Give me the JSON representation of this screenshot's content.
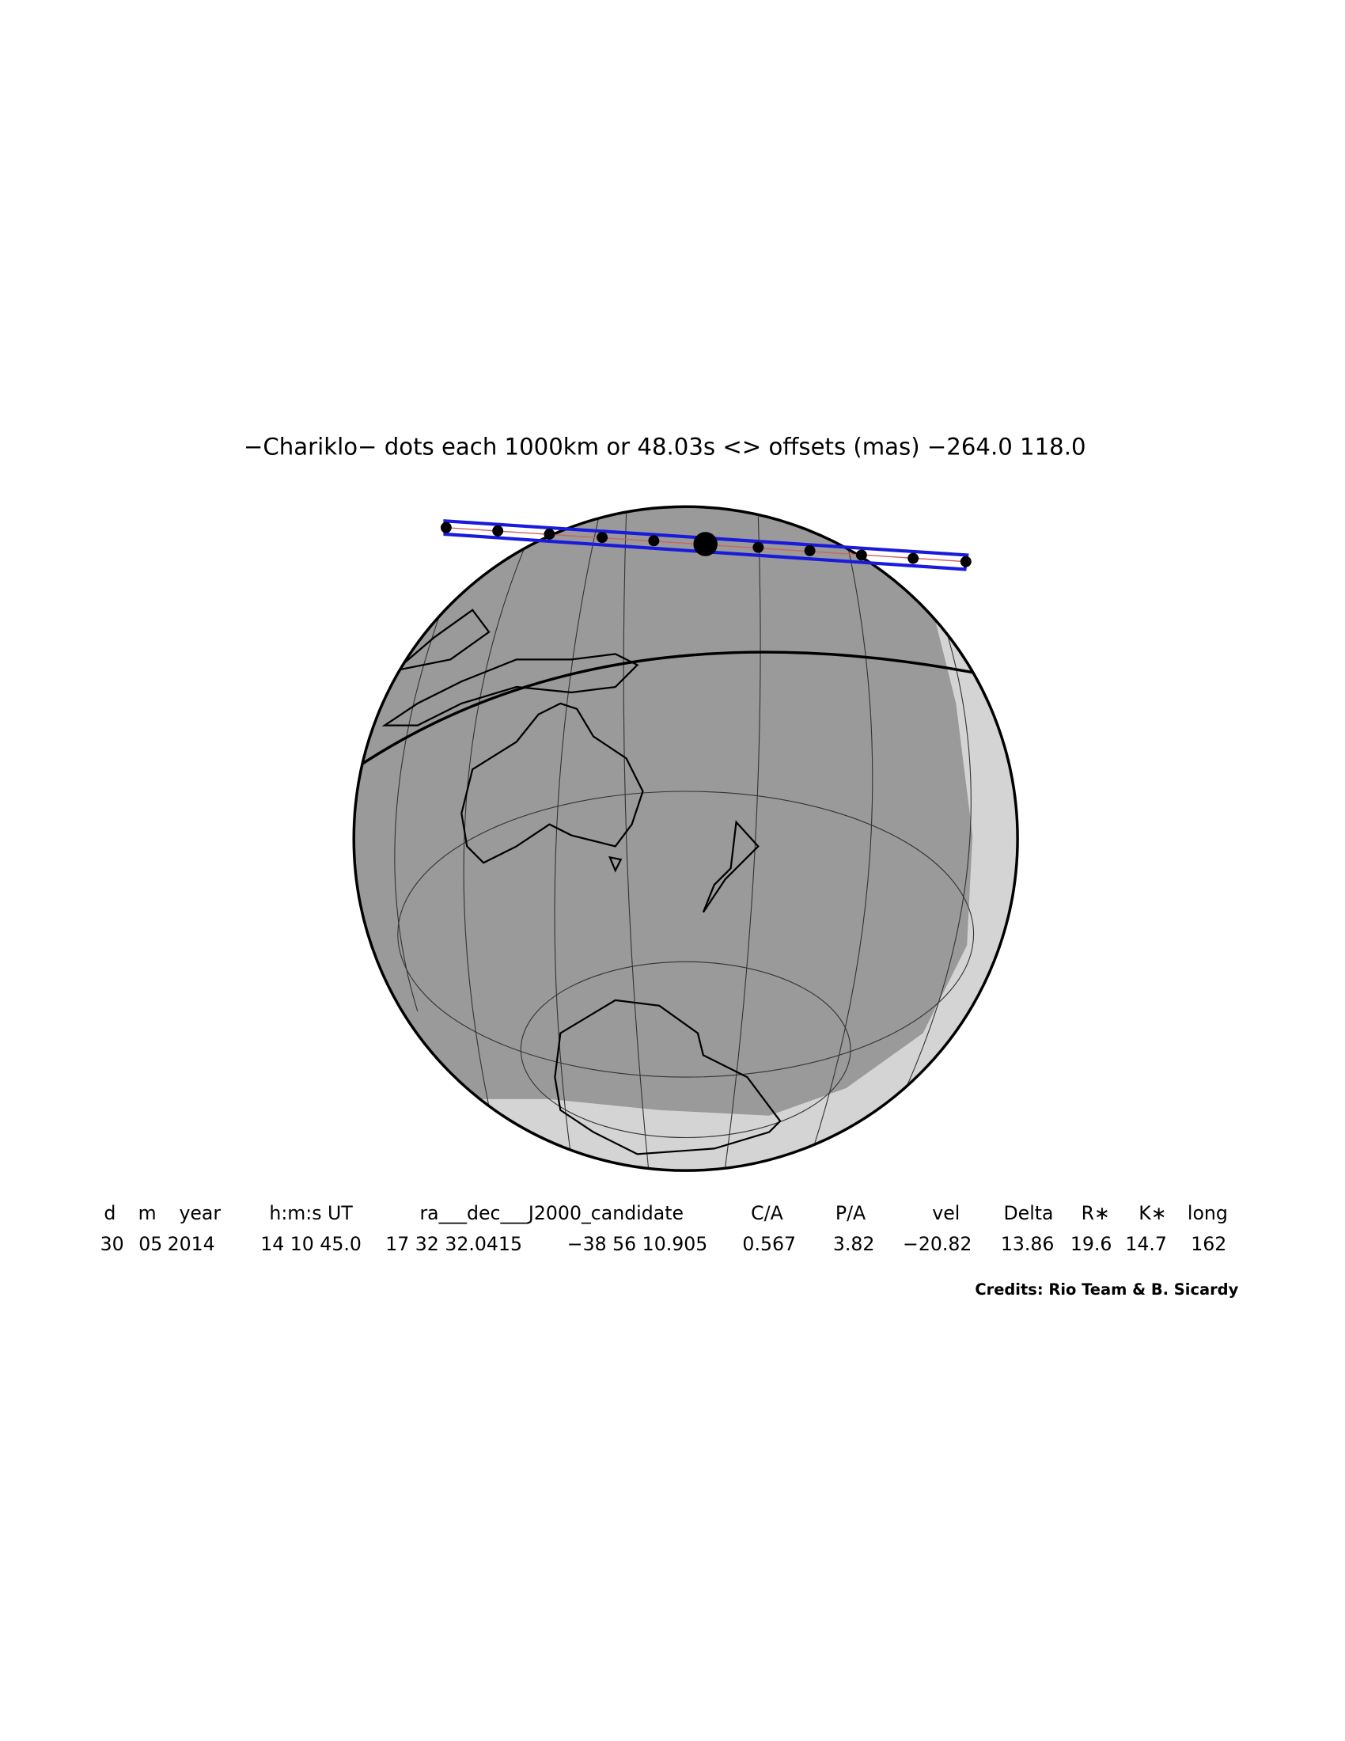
{
  "title": "−Chariklo− dots each 1000km or 48.03s <> offsets (mas) −264.0  118.0",
  "table": {
    "header": [
      "d",
      "m",
      "year",
      "h:m:s UT",
      "ra___dec___J2000_candidate",
      "C/A",
      "P/A",
      "vel",
      "Delta",
      "R∗",
      "K∗",
      "long"
    ],
    "row": [
      "30",
      "05",
      "2014",
      "14 10 45.0",
      "17 32 32.0415",
      "−38 56 10.905",
      "0.567",
      "3.82",
      "−20.82",
      "13.86",
      "19.6",
      "14.7",
      "162"
    ]
  },
  "credits": "Credits: Rio Team & B. Sicardy"
}
